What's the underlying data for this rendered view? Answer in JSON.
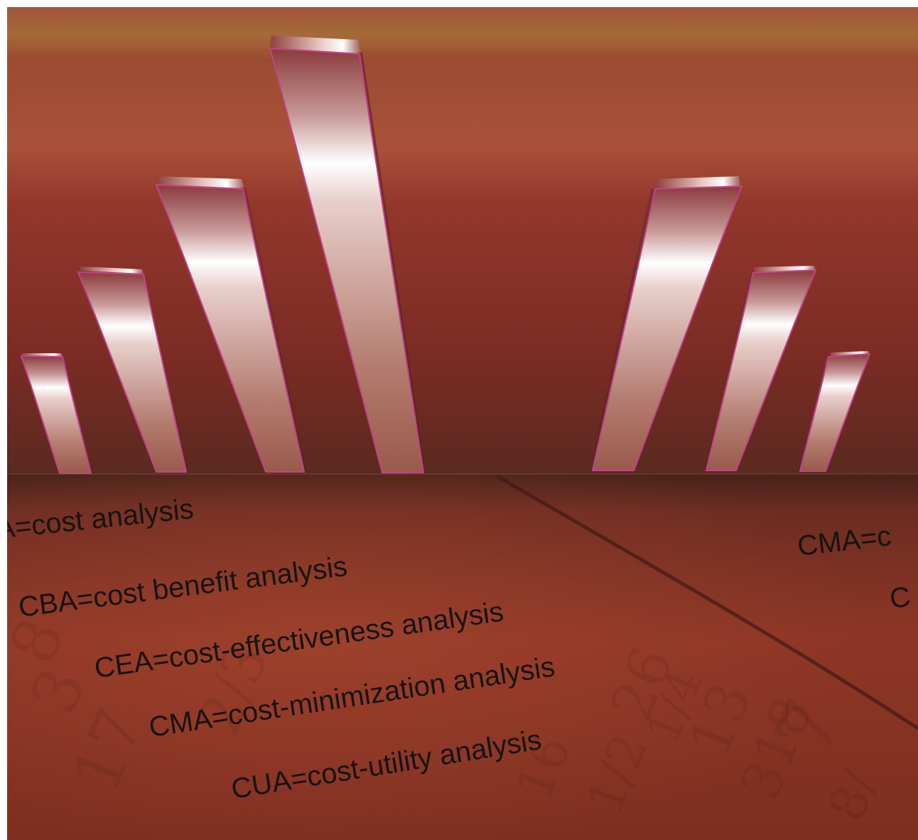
{
  "illustration": {
    "subject": "reflective bar chart illustration above a textured reddish-brown surface",
    "colors": {
      "wall_top": "#a86a38",
      "wall_mid": "#9a3f2e",
      "floor": "#8a3222",
      "bar_highlight": "#ffffff",
      "bar_edge": "#c0448a",
      "text": "#161412"
    }
  },
  "labels": {
    "left_lines": [
      "A=cost analysis",
      "CBA=cost benefit analysis",
      "CEA=cost-effectiveness analysis",
      "CMA=cost-minimization analysis",
      "CUA=cost-utility analysis"
    ],
    "right_lines": [
      "CMA=c",
      "C"
    ]
  },
  "decorative_digits": [
    "26",
    "1/4",
    "13",
    "318",
    "7",
    "8/",
    "2/3",
    "16",
    "1/2",
    "3",
    "17",
    "8"
  ]
}
